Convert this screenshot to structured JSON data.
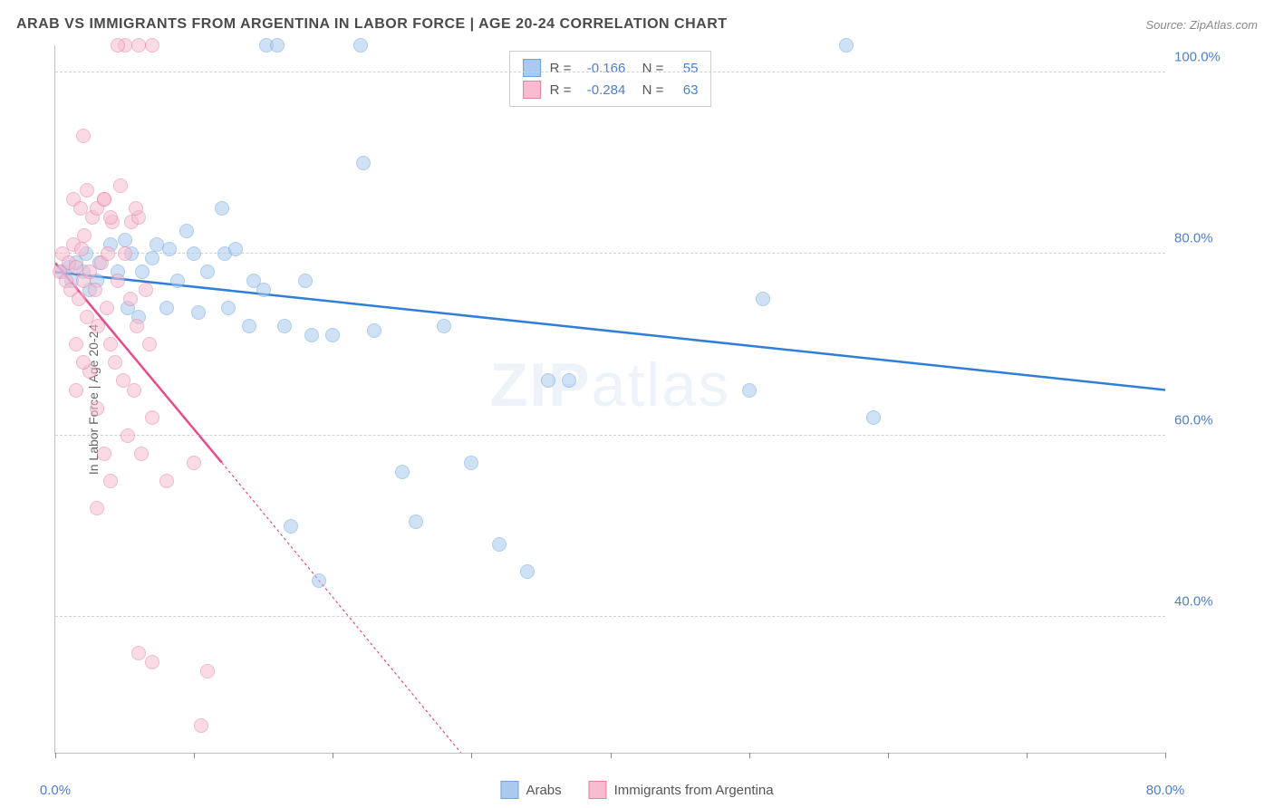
{
  "title": "ARAB VS IMMIGRANTS FROM ARGENTINA IN LABOR FORCE | AGE 20-24 CORRELATION CHART",
  "source": "Source: ZipAtlas.com",
  "watermark_zip": "ZIP",
  "watermark_atlas": "atlas",
  "ylabel": "In Labor Force | Age 20-24",
  "chart": {
    "type": "scatter",
    "xlim": [
      0,
      80
    ],
    "ylim": [
      25,
      103
    ],
    "xticks": [
      0,
      10,
      20,
      30,
      40,
      50,
      60,
      70,
      80
    ],
    "yticks": [
      40,
      60,
      80,
      100
    ],
    "xtick_labels": {
      "0": "0.0%",
      "80": "80.0%"
    },
    "ytick_labels": {
      "40": "40.0%",
      "60": "60.0%",
      "80": "80.0%",
      "100": "100.0%"
    },
    "grid_color": "#d0d0d0",
    "background_color": "#ffffff",
    "series": [
      {
        "name": "Arabs",
        "color_fill": "#a9c9ee",
        "color_stroke": "#6fa3da",
        "marker_size": 16,
        "fill_opacity": 0.55,
        "R": "-0.166",
        "N": "55",
        "trend": {
          "x1": 0,
          "y1": 78,
          "x2": 80,
          "y2": 65,
          "color": "#2f7ed8",
          "width": 2.5
        },
        "points": [
          [
            0.5,
            78
          ],
          [
            1,
            78.5
          ],
          [
            1.2,
            77
          ],
          [
            1.5,
            79
          ],
          [
            2,
            78
          ],
          [
            2.2,
            80
          ],
          [
            2.5,
            76
          ],
          [
            3,
            77
          ],
          [
            3.2,
            79
          ],
          [
            4,
            81
          ],
          [
            4.5,
            78
          ],
          [
            5,
            81.5
          ],
          [
            5.2,
            74
          ],
          [
            5.5,
            80
          ],
          [
            6,
            73
          ],
          [
            6.3,
            78
          ],
          [
            7,
            79.5
          ],
          [
            7.3,
            81
          ],
          [
            8,
            74
          ],
          [
            8.2,
            80.5
          ],
          [
            8.8,
            77
          ],
          [
            9.5,
            82.5
          ],
          [
            10,
            80
          ],
          [
            10.3,
            73.5
          ],
          [
            11,
            78
          ],
          [
            12,
            85
          ],
          [
            12.2,
            80
          ],
          [
            12.5,
            74
          ],
          [
            13,
            80.5
          ],
          [
            14,
            72
          ],
          [
            14.3,
            77
          ],
          [
            15,
            76
          ],
          [
            15.2,
            103
          ],
          [
            16,
            103
          ],
          [
            16.5,
            72
          ],
          [
            17,
            50
          ],
          [
            18,
            77
          ],
          [
            18.5,
            71
          ],
          [
            19,
            44
          ],
          [
            20,
            71
          ],
          [
            22,
            103
          ],
          [
            22.2,
            90
          ],
          [
            23,
            71.5
          ],
          [
            25,
            56
          ],
          [
            26,
            50.5
          ],
          [
            28,
            72
          ],
          [
            30,
            57
          ],
          [
            32,
            48
          ],
          [
            34,
            45
          ],
          [
            35.5,
            66
          ],
          [
            37,
            66
          ],
          [
            50,
            65
          ],
          [
            51,
            75
          ],
          [
            57,
            103
          ],
          [
            59,
            62
          ]
        ]
      },
      {
        "name": "Immigrants from Argentina",
        "color_fill": "#f7bcd0",
        "color_stroke": "#e57fa5",
        "marker_size": 16,
        "fill_opacity": 0.55,
        "R": "-0.284",
        "N": "63",
        "trend": {
          "x1": 0,
          "y1": 79,
          "x2": 12,
          "y2": 57,
          "extend_x2": 33,
          "extend_y2": 18,
          "color": "#e84a8a",
          "width": 2.5
        },
        "points": [
          [
            0.3,
            78
          ],
          [
            0.5,
            80
          ],
          [
            0.8,
            77
          ],
          [
            1,
            79
          ],
          [
            1.1,
            76
          ],
          [
            1.3,
            81
          ],
          [
            1.5,
            78.5
          ],
          [
            1.7,
            75
          ],
          [
            1.9,
            80.5
          ],
          [
            2,
            77
          ],
          [
            2.1,
            82
          ],
          [
            2.3,
            73
          ],
          [
            2.5,
            78
          ],
          [
            2.7,
            84
          ],
          [
            2.9,
            76
          ],
          [
            3,
            85
          ],
          [
            3.1,
            72
          ],
          [
            3.3,
            79
          ],
          [
            3.5,
            86
          ],
          [
            3.7,
            74
          ],
          [
            3.8,
            80
          ],
          [
            4,
            70
          ],
          [
            4.1,
            83.5
          ],
          [
            4.3,
            68
          ],
          [
            4.5,
            77
          ],
          [
            4.7,
            87.5
          ],
          [
            4.9,
            66
          ],
          [
            5,
            80
          ],
          [
            5.2,
            60
          ],
          [
            5.4,
            75
          ],
          [
            1.5,
            70
          ],
          [
            2,
            93
          ],
          [
            5.5,
            83.5
          ],
          [
            5.7,
            65
          ],
          [
            5.9,
            72
          ],
          [
            6,
            84
          ],
          [
            6.2,
            58
          ],
          [
            6.5,
            76
          ],
          [
            6.8,
            70
          ],
          [
            7,
            62
          ],
          [
            5,
            103
          ],
          [
            6,
            103
          ],
          [
            7,
            103
          ],
          [
            2.5,
            67
          ],
          [
            3,
            63
          ],
          [
            3.5,
            58
          ],
          [
            4,
            55
          ],
          [
            1.5,
            65
          ],
          [
            2,
            68
          ],
          [
            4.5,
            103
          ],
          [
            3,
            52
          ],
          [
            3.5,
            86
          ],
          [
            4,
            84
          ],
          [
            6,
            36
          ],
          [
            7,
            35
          ],
          [
            8,
            55
          ],
          [
            10,
            57
          ],
          [
            11,
            34
          ],
          [
            10.5,
            28
          ],
          [
            1.3,
            86
          ],
          [
            1.8,
            85
          ],
          [
            2.3,
            87
          ],
          [
            5.8,
            85
          ]
        ]
      }
    ]
  },
  "legend_bottom": [
    {
      "label": "Arabs",
      "fill": "#a9c9ee",
      "stroke": "#6fa3da"
    },
    {
      "label": "Immigrants from Argentina",
      "fill": "#f7bcd0",
      "stroke": "#e57fa5"
    }
  ]
}
